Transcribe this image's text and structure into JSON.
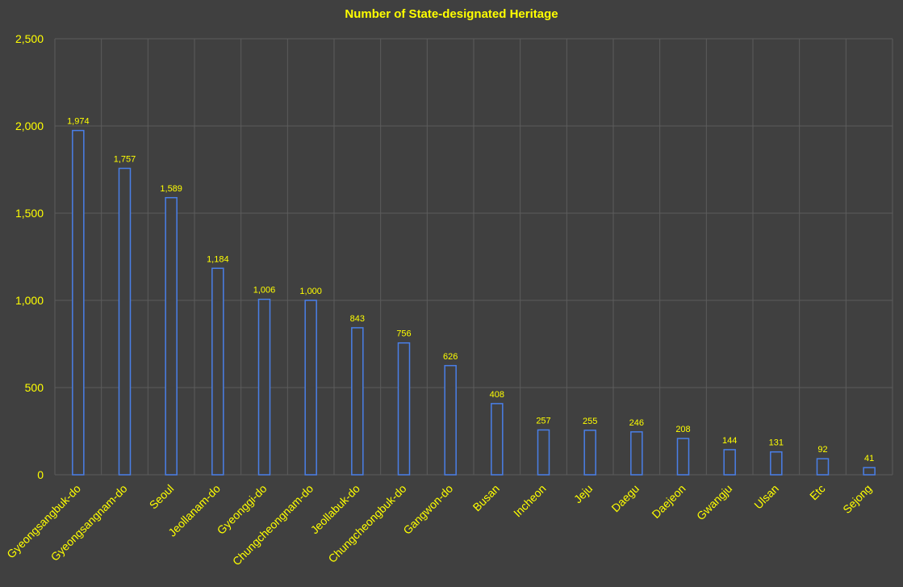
{
  "chart_data": {
    "type": "bar",
    "title": "Number of State-designated Heritage",
    "xlabel": "",
    "ylabel": "",
    "ylim": [
      0,
      2500
    ],
    "yticks": [
      0,
      500,
      1000,
      1500,
      2000,
      2500
    ],
    "ytick_labels": [
      "0",
      "500",
      "1,000",
      "1,500",
      "2,000",
      "2,500"
    ],
    "grid": true,
    "legend": "none",
    "categories": [
      "Gyeongsangbuk-do",
      "Gyeongsangnam-do",
      "Seoul",
      "Jeollanam-do",
      "Gyeonggi-do",
      "Chungcheongnam-do",
      "Jeollabuk-do",
      "Chungcheongbuk-do",
      "Gangwon-do",
      "Busan",
      "Incheon",
      "Jeju",
      "Daegu",
      "Daejeon",
      "Gwangju",
      "Ulsan",
      "Etc",
      "Sejong"
    ],
    "values": [
      1974,
      1757,
      1589,
      1184,
      1006,
      1000,
      843,
      756,
      626,
      408,
      257,
      255,
      246,
      208,
      144,
      131,
      92,
      41
    ],
    "value_labels": [
      "1,974",
      "1,757",
      "1,589",
      "1,184",
      "1,006",
      "1,000",
      "843",
      "756",
      "626",
      "408",
      "257",
      "255",
      "246",
      "208",
      "144",
      "131",
      "92",
      "41"
    ],
    "colors": {
      "background": "#404040",
      "text": "#ffff00",
      "bar_stroke": "#4a7fe8",
      "bar_fill": "#404040",
      "grid": "#5c5c5c"
    }
  }
}
